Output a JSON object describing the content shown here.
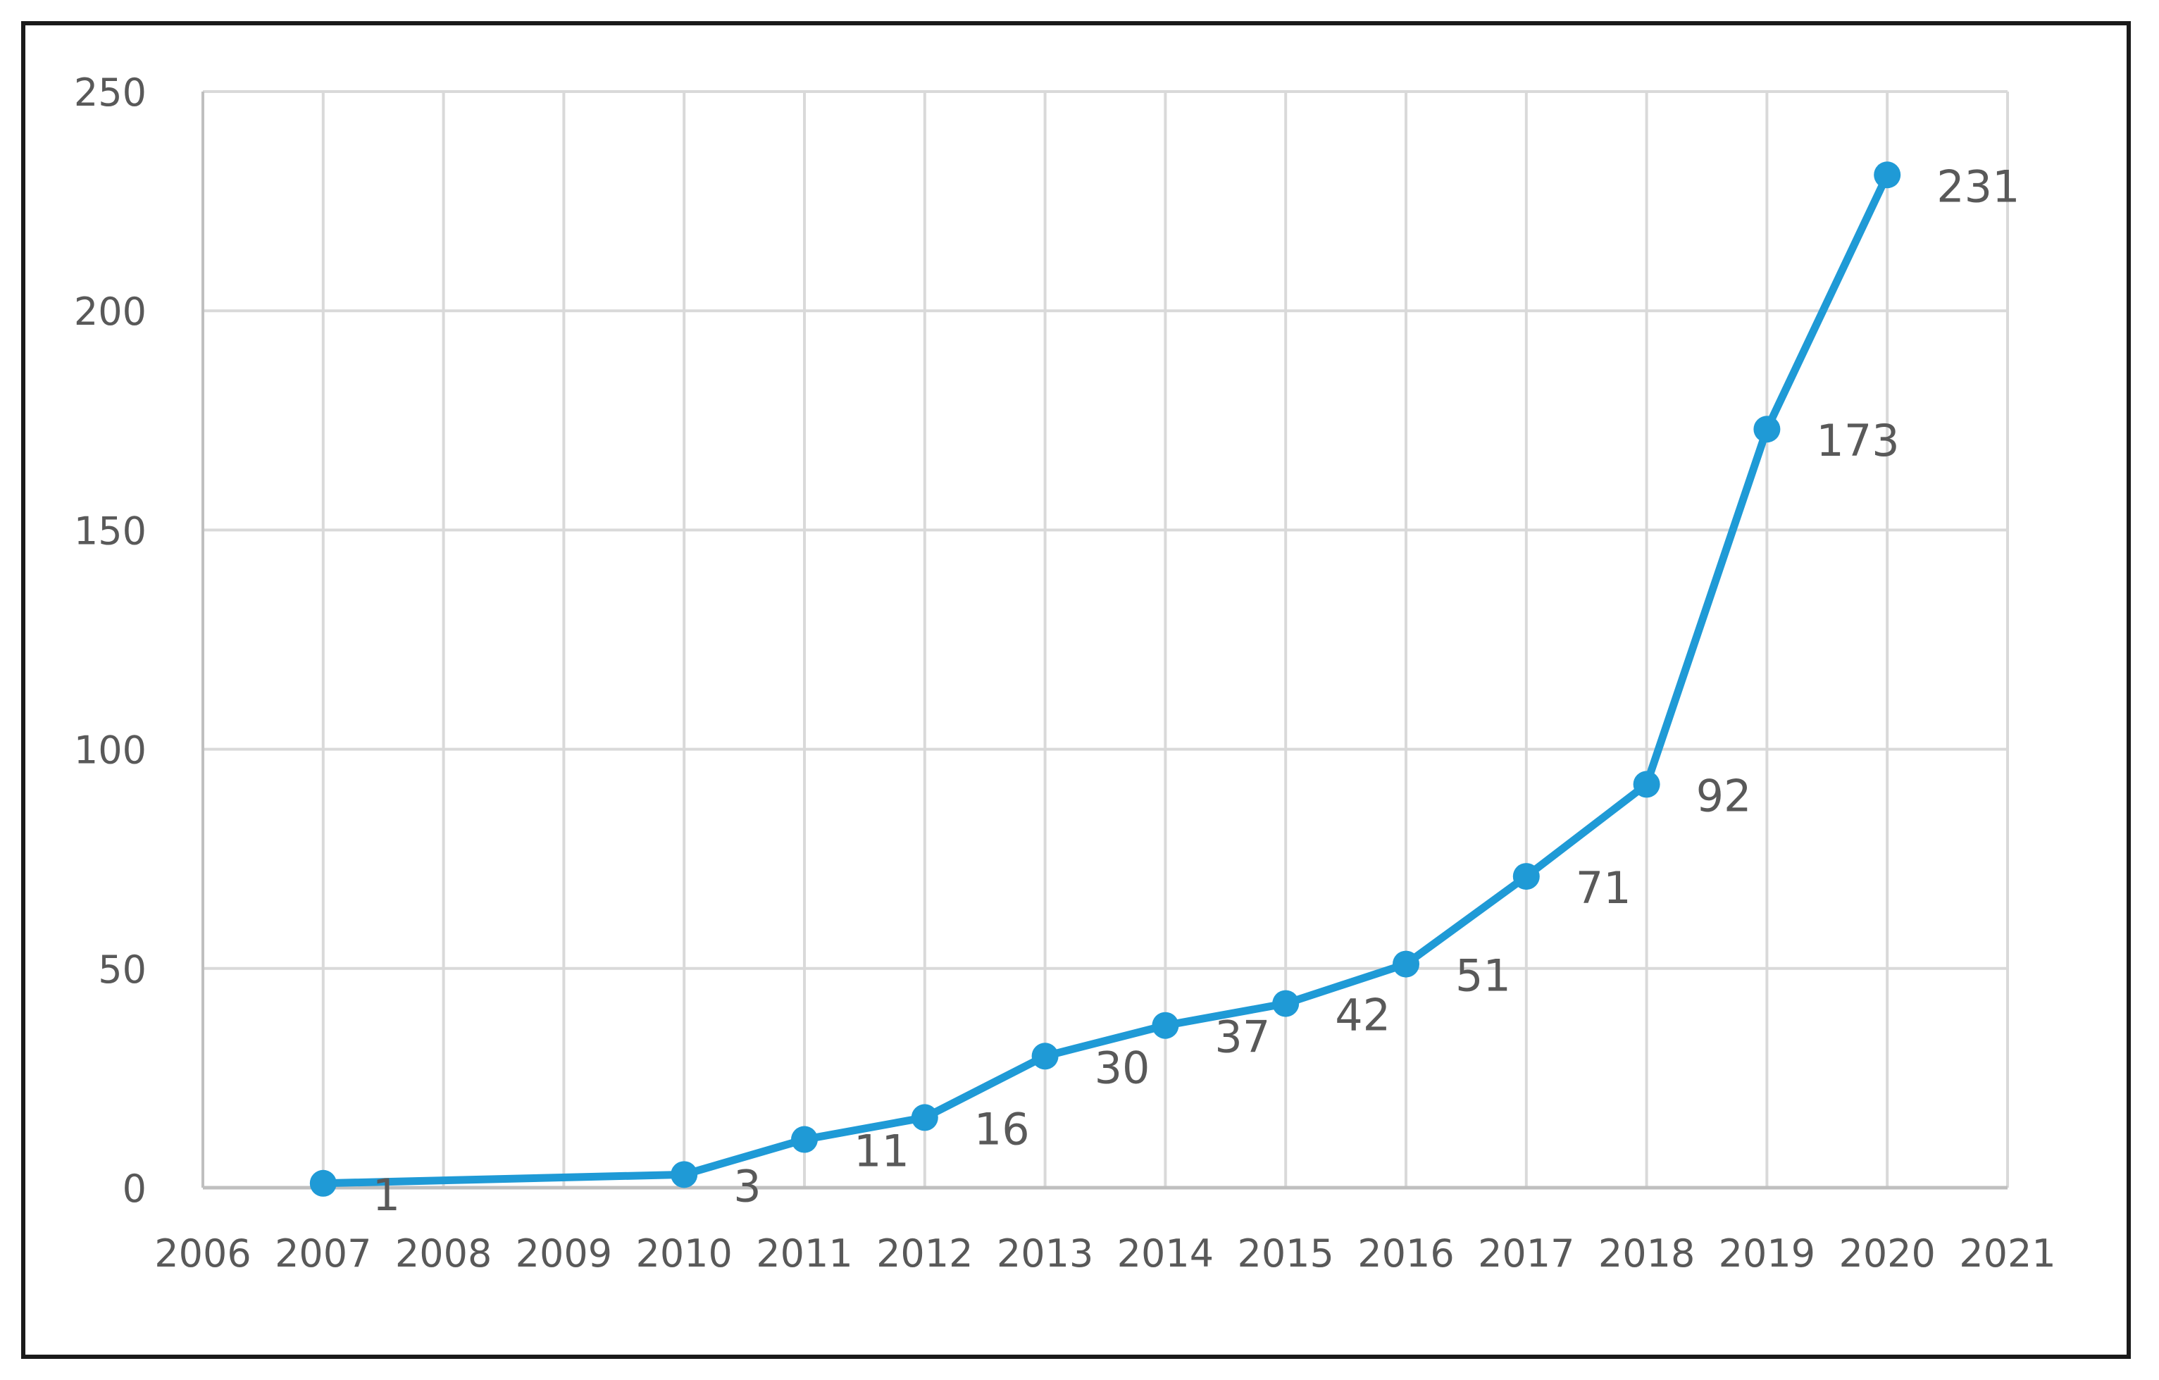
{
  "chart_data": {
    "type": "line",
    "title": "",
    "xlabel": "",
    "ylabel": "",
    "x_ticks": [
      "2006",
      "2007",
      "2008",
      "2009",
      "2010",
      "2011",
      "2012",
      "2013",
      "2014",
      "2015",
      "2016",
      "2017",
      "2018",
      "2019",
      "2020",
      "2021"
    ],
    "y_ticks": [
      "0",
      "50",
      "100",
      "150",
      "200",
      "250"
    ],
    "xlim": [
      2006,
      2021
    ],
    "ylim": [
      0,
      250
    ],
    "grid": true,
    "legend": "none",
    "series": [
      {
        "x": [
          2007,
          2010,
          2011,
          2012,
          2013,
          2014,
          2015,
          2016,
          2017,
          2018,
          2019,
          2020
        ],
        "values": [
          1,
          3,
          11,
          16,
          30,
          37,
          42,
          51,
          71,
          92,
          173,
          231
        ],
        "labels": [
          "1",
          "3",
          "11",
          "16",
          "30",
          "37",
          "42",
          "51",
          "71",
          "92",
          "173",
          "231"
        ],
        "color": "#1f9ad6"
      }
    ]
  },
  "colors": {
    "grid": "#d9d9d9",
    "axis_text": "#595959",
    "frame": "#1a1a1a",
    "line": "#1f9ad6"
  }
}
